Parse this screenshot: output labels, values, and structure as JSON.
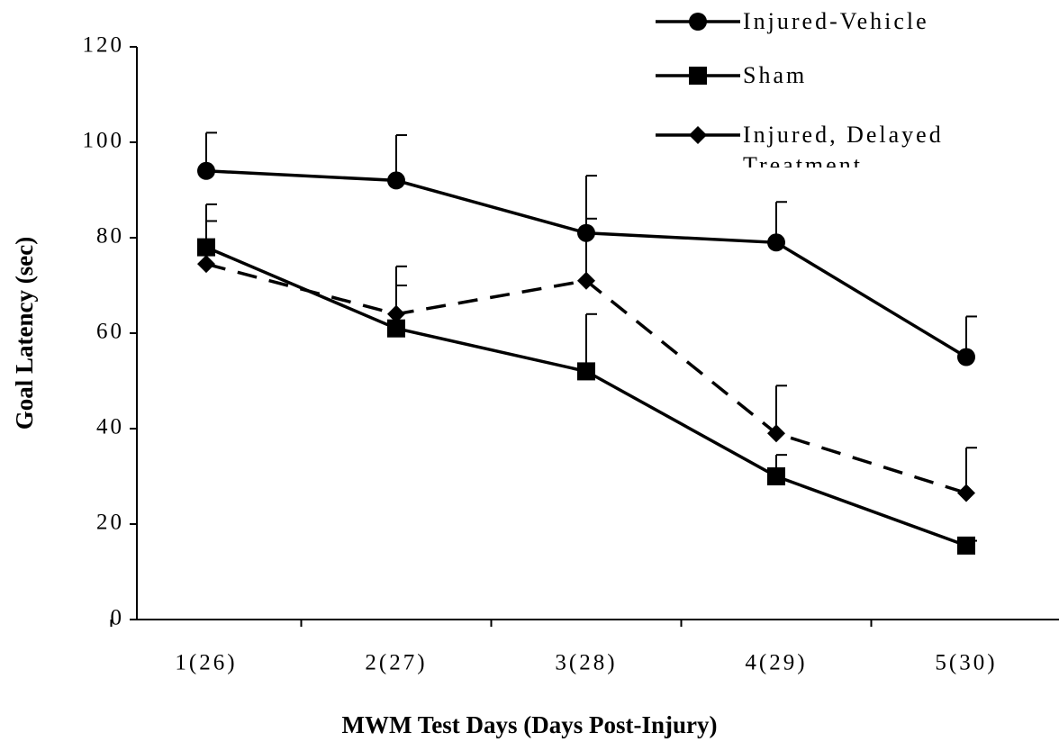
{
  "chart_data": {
    "type": "line",
    "x_label": "MWM Test Days (Days Post-Injury)",
    "y_label": "Goal Latency (sec)",
    "categories": [
      "1(26)",
      "2(27)",
      "3(28)",
      "4(29)",
      "5(30)"
    ],
    "ylim": [
      0,
      120
    ],
    "yticks": [
      0,
      20,
      40,
      60,
      80,
      100,
      120
    ],
    "legend": "top-right",
    "series": [
      {
        "name": "Injured-Vehicle",
        "color": "#000000",
        "marker": "circle",
        "line_style": "solid",
        "values": [
          94,
          92,
          81,
          79,
          55
        ],
        "errors": [
          8,
          9.5,
          12,
          8.5,
          8.5
        ]
      },
      {
        "name": "Sham",
        "color": "#000000",
        "marker": "square",
        "line_style": "solid",
        "values": [
          78,
          61,
          52,
          30,
          15.5
        ],
        "errors": [
          5.5,
          9,
          12,
          4.5,
          1
        ]
      },
      {
        "name": "Injured, Delayed Treatment",
        "color": "#000000",
        "marker": "diamond",
        "line_style": "dashed",
        "values": [
          74.5,
          64,
          71,
          39,
          26.5
        ],
        "errors": [
          12.5,
          10,
          13,
          10,
          9.5
        ]
      }
    ]
  }
}
